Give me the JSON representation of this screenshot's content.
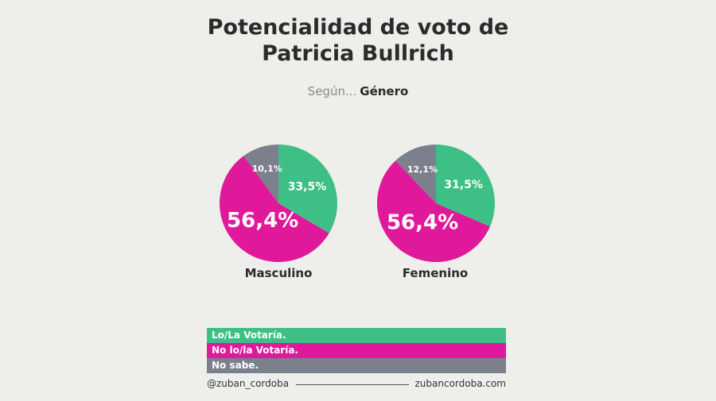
{
  "title_line1": "Potencialidad de voto de",
  "title_line2": "Patricia Bullrich",
  "subtitle_prefix": "Según...",
  "subtitle_strong": "Género",
  "legend": [
    {
      "label": "Lo/La Votaría.",
      "color": "#3dbf85"
    },
    {
      "label": "No lo/la Votaría.",
      "color": "#e0189a"
    },
    {
      "label": "No sabe.",
      "color": "#7c7f8c"
    }
  ],
  "footer": {
    "handle": "@zuban_cordoba",
    "site": "zubancordoba.com"
  },
  "chart_data": {
    "type": "pie",
    "title": "Potencialidad de voto de Patricia Bullrich",
    "subtitle": "Según... Género",
    "legend_position": "bottom",
    "charts": [
      {
        "label": "Masculino",
        "slices": [
          {
            "category": "Lo/La Votaría.",
            "value": 33.5,
            "label": "33,5%",
            "color": "#3dbf85"
          },
          {
            "category": "No lo/la Votaría.",
            "value": 56.4,
            "label": "56,4%",
            "color": "#e0189a"
          },
          {
            "category": "No sabe.",
            "value": 10.1,
            "label": "10,1%",
            "color": "#7c7f8c"
          }
        ]
      },
      {
        "label": "Femenino",
        "slices": [
          {
            "category": "Lo/La Votaría.",
            "value": 31.5,
            "label": "31,5%",
            "color": "#3dbf85"
          },
          {
            "category": "No lo/la Votaría.",
            "value": 56.4,
            "label": "56,4%",
            "color": "#e0189a"
          },
          {
            "category": "No sabe.",
            "value": 12.1,
            "label": "12,1%",
            "color": "#7c7f8c"
          }
        ]
      }
    ]
  }
}
